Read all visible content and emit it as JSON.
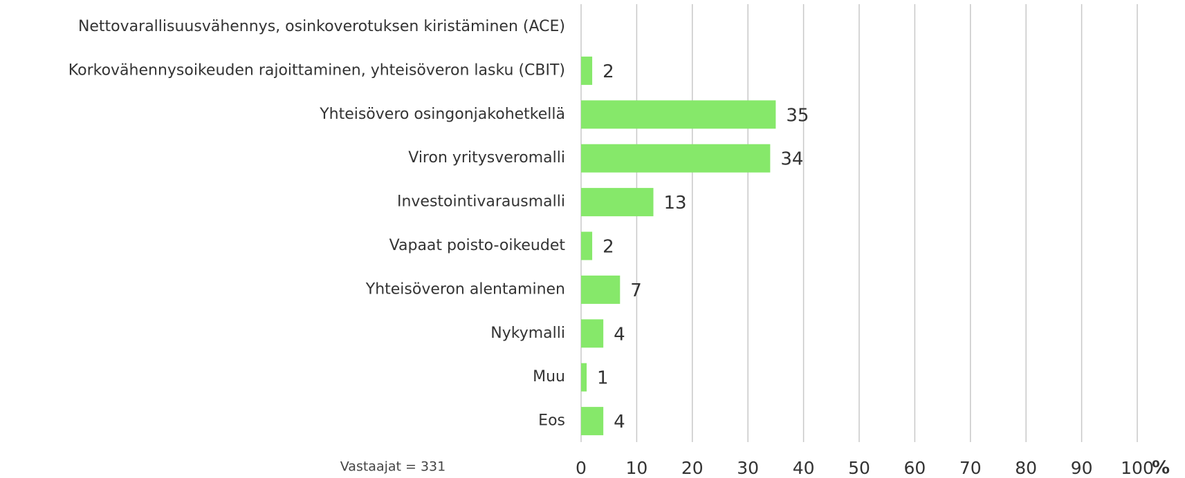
{
  "chart_data": {
    "type": "barh",
    "categories": [
      "Nettovarallisuusvähennys, osinkoverotuksen kiristäminen (ACE)",
      "Korkovähennysoikeuden rajoittaminen, yhteisöveron lasku (CBIT)",
      "Yhteisövero osingonjakohetkellä",
      "Viron yritysveromalli",
      "Investointivarausmalli",
      "Vapaat poisto-oikeudet",
      "Yhteisöveron alentaminen",
      "Nykymalli",
      "Muu",
      "Eos"
    ],
    "values": [
      null,
      2,
      35,
      34,
      13,
      2,
      7,
      4,
      1,
      4
    ],
    "color": "#86e86a",
    "xlim": [
      0,
      100
    ],
    "xticks": [
      0,
      10,
      20,
      30,
      40,
      50,
      60,
      70,
      80,
      90,
      100
    ],
    "x_unit": "%",
    "annotation": "Vastaajat = 331",
    "grid": true
  }
}
